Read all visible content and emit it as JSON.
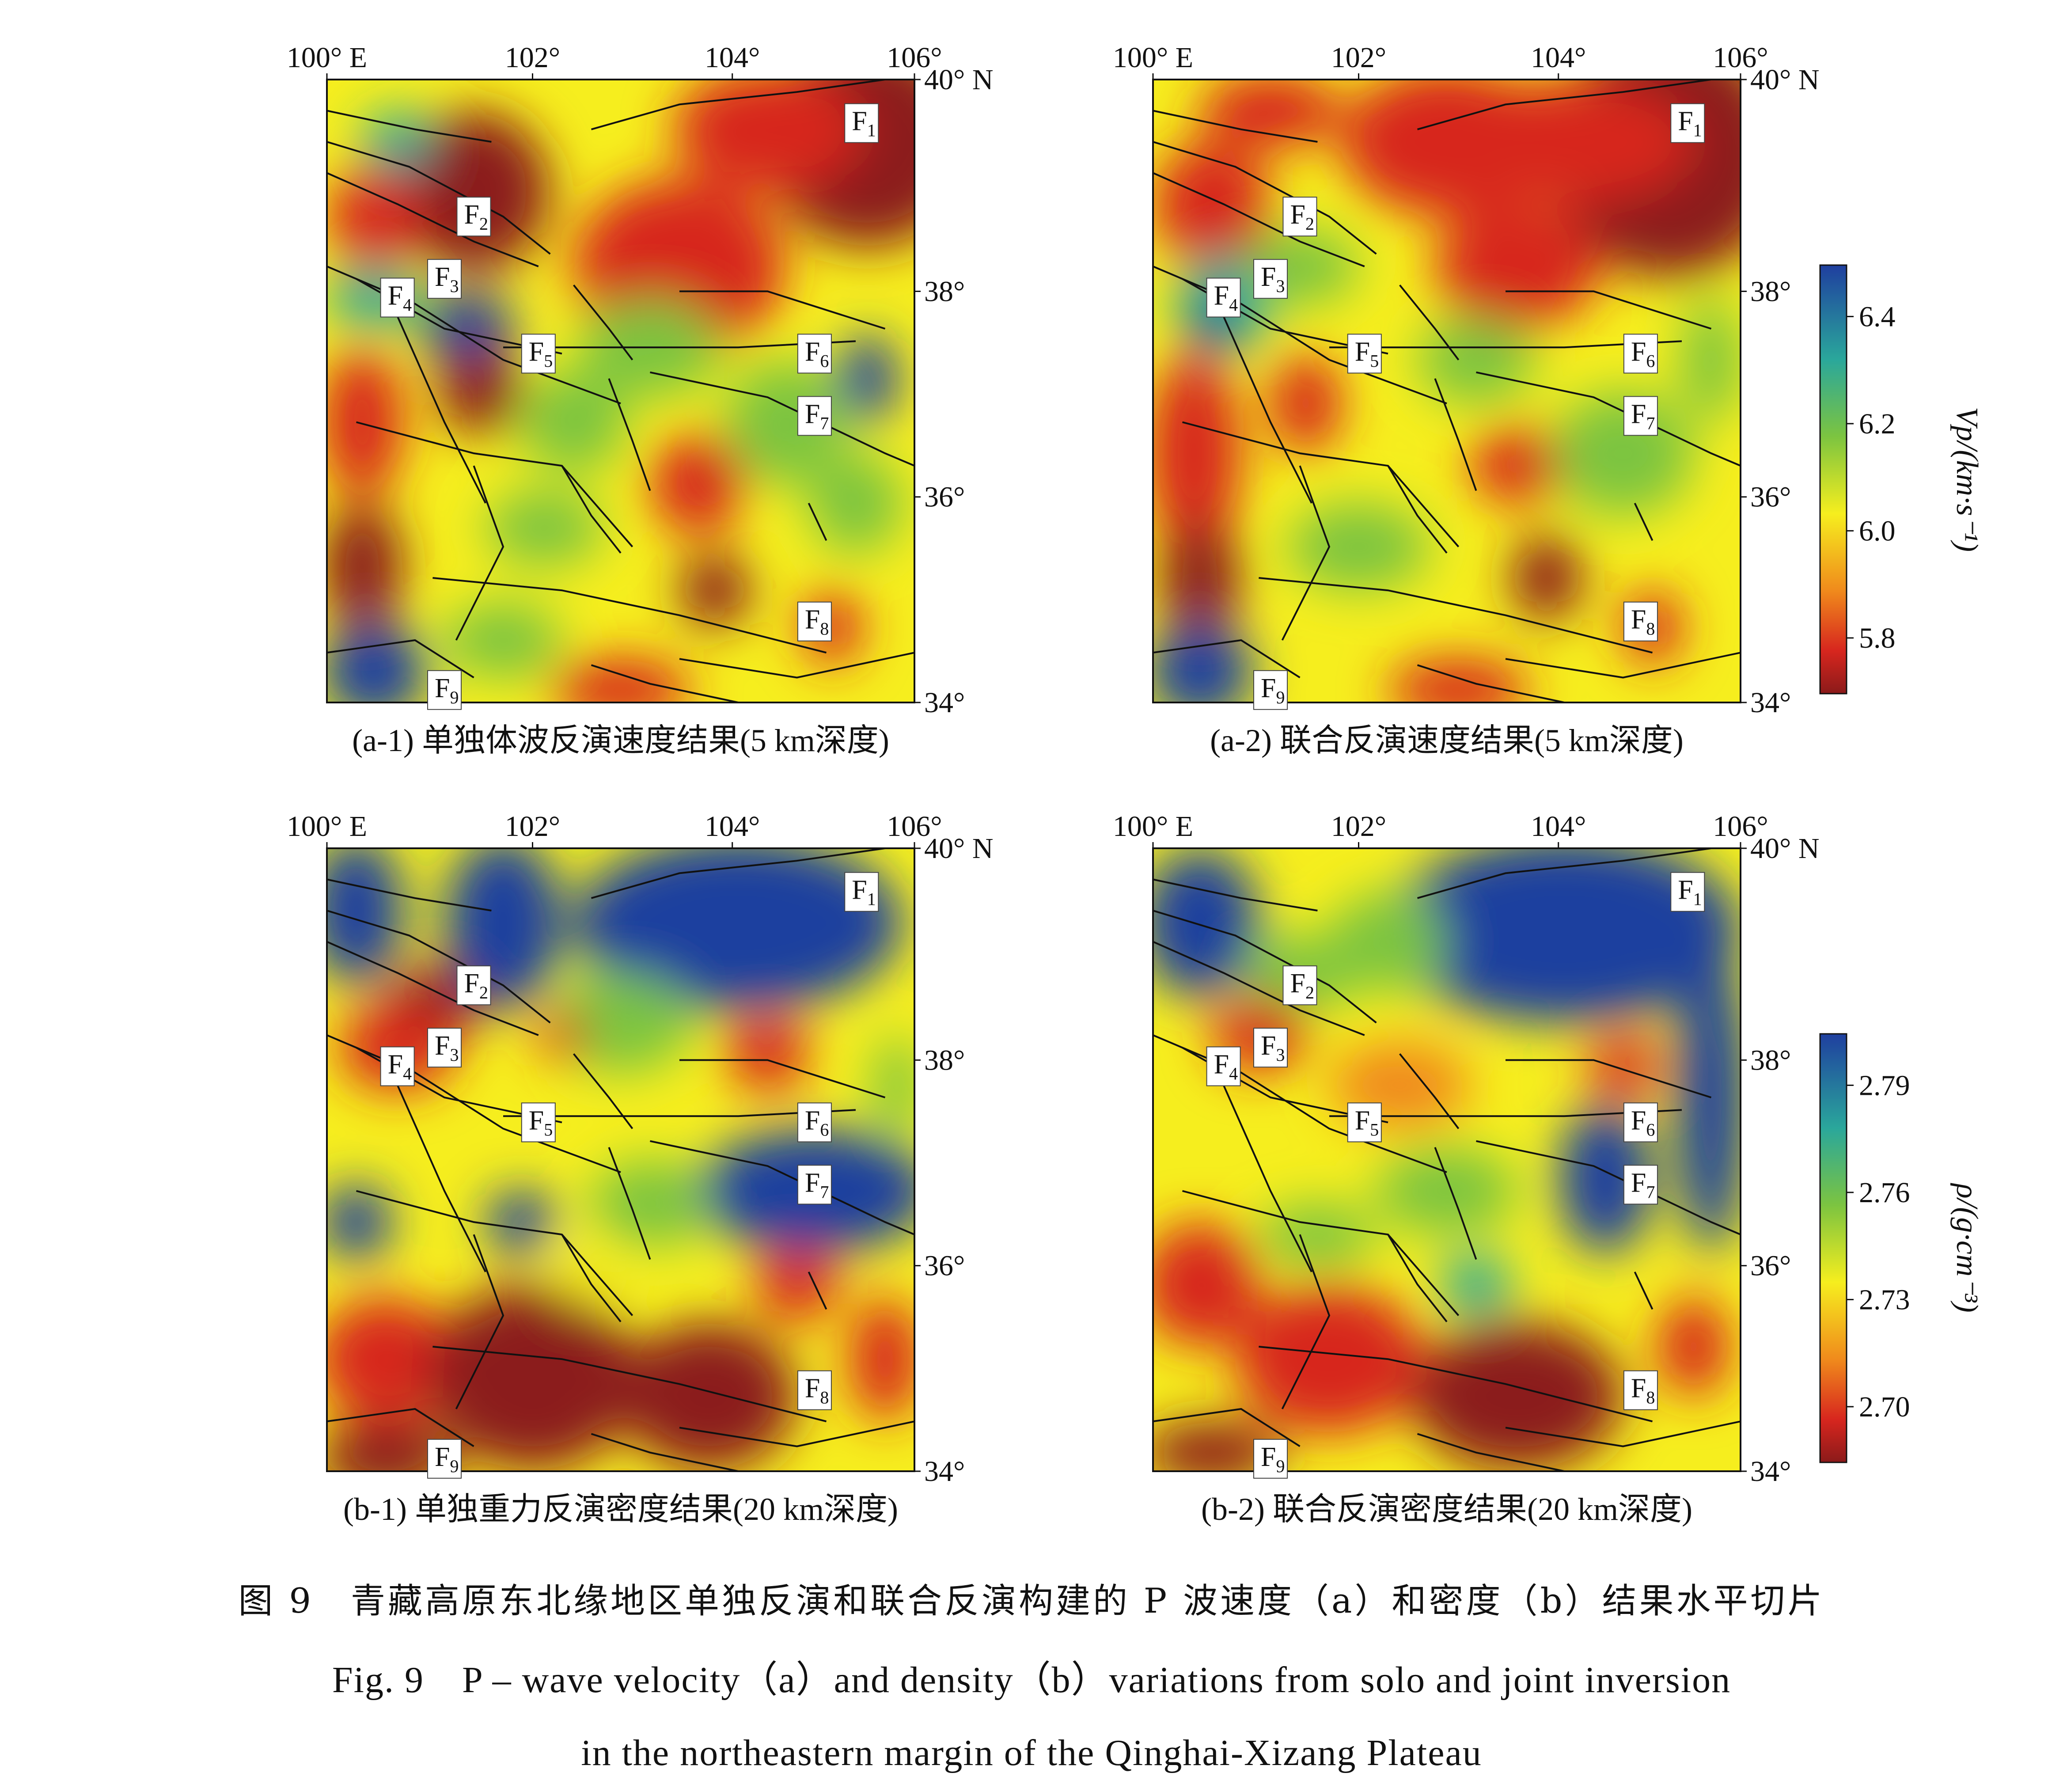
{
  "axes": {
    "lon_ticks": [
      "100° E",
      "102°",
      "104°",
      "106°"
    ],
    "lat_ticks": [
      "40° N",
      "38°",
      "36°",
      "34°"
    ]
  },
  "faults": [
    "F1",
    "F2",
    "F3",
    "F4",
    "F5",
    "F6",
    "F7",
    "F8",
    "F9"
  ],
  "fault_prefix": "F",
  "fault_numbers": [
    "1",
    "2",
    "3",
    "4",
    "5",
    "6",
    "7",
    "8",
    "9"
  ],
  "panels": [
    {
      "id": "a-1",
      "caption": "(a-1) 单独体波反演速度结果(5 km深度)",
      "field": "velocity"
    },
    {
      "id": "a-2",
      "caption": "(a-2) 联合反演速度结果(5 km深度)",
      "field": "velocity"
    },
    {
      "id": "b-1",
      "caption": "(b-1) 单独重力反演密度结果(20 km深度)",
      "field": "density"
    },
    {
      "id": "b-2",
      "caption": "(b-2) 联合反演密度结果(20 km深度)",
      "field": "density"
    }
  ],
  "colorbars": {
    "velocity": {
      "label": "Vp/(km·s⁻¹)",
      "ticks": [
        "6.4",
        "6.2",
        "6.0",
        "5.8"
      ]
    },
    "density": {
      "label": "ρ/(g·cm⁻³)",
      "ticks": [
        "2.79",
        "2.76",
        "2.73",
        "2.70"
      ]
    }
  },
  "colors": {
    "dark_red": "#8b1a1a",
    "red": "#d7261e",
    "orange": "#f08a1c",
    "yellow": "#f6ee1e",
    "green": "#7cc440",
    "teal": "#2aa79b",
    "blue": "#1f3f9f",
    "fault_line": "#111111"
  },
  "figure_caption": {
    "cn": "图 9　青藏高原东北缘地区单独反演和联合反演构建的 P 波速度（a）和密度（b）结果水平切片",
    "en_line1": "Fig. 9　P – wave velocity（a）and density（b）variations from solo and joint inversion",
    "en_line2": "in the northeastern margin of the Qinghai-Xizang Plateau"
  }
}
